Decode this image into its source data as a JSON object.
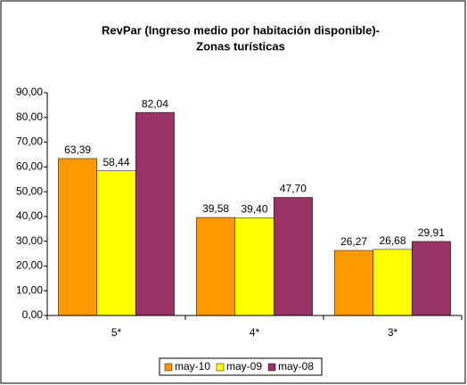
{
  "chart_data": {
    "type": "bar",
    "title": [
      "RevPar (Ingreso medio por habitación disponible)-",
      "Zonas turísticas"
    ],
    "categories": [
      "5*",
      "4*",
      "3*"
    ],
    "series": [
      {
        "name": "may-10",
        "color": "#ff9900",
        "values": [
          63.39,
          39.58,
          26.27
        ],
        "value_labels": [
          "63,39",
          "39,58",
          "26,27"
        ]
      },
      {
        "name": "may-09",
        "color": "#ffff00",
        "values": [
          58.44,
          39.4,
          26.68
        ],
        "value_labels": [
          "58,44",
          "39,40",
          "26,68"
        ]
      },
      {
        "name": "may-08",
        "color": "#993366",
        "values": [
          82.04,
          47.7,
          29.91
        ],
        "value_labels": [
          "82,04",
          "47,70",
          "29,91"
        ]
      }
    ],
    "ylim": [
      0,
      90
    ],
    "yticks": [
      {
        "value": 0,
        "label": "0,00"
      },
      {
        "value": 10,
        "label": "10,00"
      },
      {
        "value": 20,
        "label": "20,00"
      },
      {
        "value": 30,
        "label": "30,00"
      },
      {
        "value": 40,
        "label": "40,00"
      },
      {
        "value": 50,
        "label": "50,00"
      },
      {
        "value": 60,
        "label": "60,00"
      },
      {
        "value": 70,
        "label": "70,00"
      },
      {
        "value": 80,
        "label": "80,00"
      },
      {
        "value": 90,
        "label": "90,00"
      }
    ],
    "legend": "bottom",
    "grid": false
  }
}
